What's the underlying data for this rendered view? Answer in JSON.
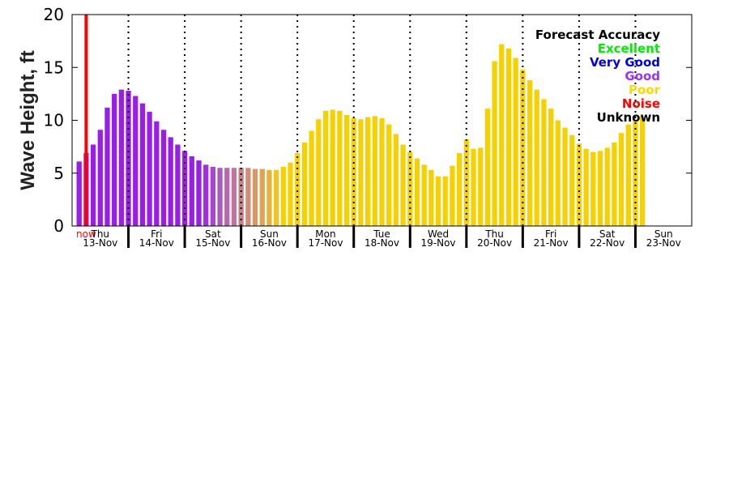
{
  "chart_data": {
    "type": "bar",
    "ylabel": "Wave Height, ft",
    "ylim": [
      0,
      20
    ],
    "yticks": [
      0,
      5,
      10,
      15,
      20
    ],
    "now_label": "now",
    "now_color": "#ff0000",
    "legend": {
      "title": "Forecast Accuracy",
      "placement": "top-right",
      "items": [
        {
          "label": "Excellent",
          "color": "#00ee00"
        },
        {
          "label": "Very Good",
          "color": "#0000dd"
        },
        {
          "label": "Good",
          "color": "#9b30ff"
        },
        {
          "label": "Poor",
          "color": "#ffd700"
        },
        {
          "label": "Noise",
          "color": "#ff0000"
        },
        {
          "label": "Unknown",
          "color": "#000000"
        }
      ]
    },
    "days": [
      {
        "day": "Thu",
        "date": "13-Nov"
      },
      {
        "day": "Fri",
        "date": "14-Nov"
      },
      {
        "day": "Sat",
        "date": "15-Nov"
      },
      {
        "day": "Sun",
        "date": "16-Nov"
      },
      {
        "day": "Mon",
        "date": "17-Nov"
      },
      {
        "day": "Tue",
        "date": "18-Nov"
      },
      {
        "day": "Wed",
        "date": "19-Nov"
      },
      {
        "day": "Thu",
        "date": "20-Nov"
      },
      {
        "day": "Fri",
        "date": "21-Nov"
      },
      {
        "day": "Sat",
        "date": "22-Nov"
      },
      {
        "day": "Sun",
        "date": "23-Nov"
      }
    ],
    "values": [
      6.1,
      6.9,
      7.7,
      9.1,
      11.2,
      12.5,
      12.9,
      12.8,
      12.3,
      11.6,
      10.8,
      9.9,
      9.1,
      8.4,
      7.7,
      7.1,
      6.6,
      6.2,
      5.8,
      5.6,
      5.5,
      5.5,
      5.5,
      5.5,
      5.5,
      5.4,
      5.4,
      5.3,
      5.3,
      5.6,
      6.0,
      6.9,
      7.9,
      9.0,
      10.1,
      10.9,
      11.0,
      10.9,
      10.5,
      10.2,
      10.1,
      10.3,
      10.4,
      10.2,
      9.6,
      8.7,
      7.7,
      7.0,
      6.4,
      5.8,
      5.3,
      4.7,
      4.7,
      5.7,
      6.9,
      8.2,
      7.3,
      7.4,
      11.1,
      15.6,
      17.2,
      16.8,
      15.9,
      14.8,
      13.8,
      12.9,
      12.0,
      11.1,
      10.0,
      9.3,
      8.6,
      7.8,
      7.3,
      7.0,
      7.1,
      7.4,
      7.9,
      8.8,
      9.6,
      10.1,
      10.4
    ],
    "bar_colors": [
      "#9b1ee8",
      "#9b1ee8",
      "#9b1ee8",
      "#9b1ee8",
      "#9b1ee8",
      "#9b1ee8",
      "#9b1ee8",
      "#9b1ee8",
      "#9b1ee8",
      "#9b1ee8",
      "#9b1ee8",
      "#9b1ee8",
      "#9b1ee8",
      "#9b1ee8",
      "#9b1ee8",
      "#9b1ee8",
      "#9b1ee8",
      "#9b1ee8",
      "#a22ee0",
      "#a845d2",
      "#b057c0",
      "#b866b0",
      "#c0739c",
      "#c88088",
      "#d08c76",
      "#d89866",
      "#dea450",
      "#e6b23c",
      "#f0c428",
      "#f7d000",
      "#f7d000",
      "#f7d000",
      "#f7d000",
      "#f7d000",
      "#f7d000",
      "#f7d000",
      "#f7d000",
      "#f7d000",
      "#f7d000",
      "#f7d000",
      "#f7d000",
      "#f7d000",
      "#f7d000",
      "#f7d000",
      "#f7d000",
      "#f7d000",
      "#f7d000",
      "#f7d000",
      "#f7d000",
      "#f7d000",
      "#f7d000",
      "#f7d000",
      "#f7d000",
      "#f7d000",
      "#f7d000",
      "#f7d000",
      "#f7d000",
      "#f7d000",
      "#f7d000",
      "#f7d000",
      "#f7d000",
      "#f7d000",
      "#f7d000",
      "#f7d000",
      "#f7d000",
      "#f7d000",
      "#f7d000",
      "#f7d000",
      "#f7d000",
      "#f7d000",
      "#f7d000",
      "#f7d000",
      "#f7d000",
      "#f7d000",
      "#f7d000",
      "#f7d000",
      "#f7d000",
      "#f7d000",
      "#f7d000",
      "#f7d000",
      "#f7d000"
    ]
  }
}
